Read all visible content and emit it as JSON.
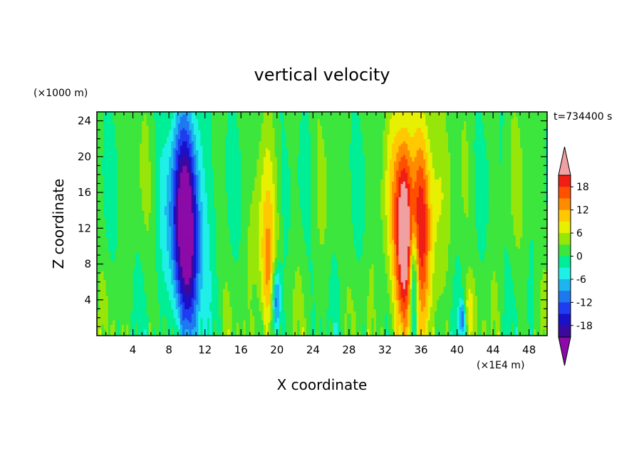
{
  "chart_data": {
    "type": "heatmap",
    "title": "vertical velocity",
    "xlabel": "X coordinate",
    "ylabel": "Z coordinate",
    "x_unit": "(×1E4 m)",
    "y_unit": "(×1000 m)",
    "time_label": "t=734400 s",
    "xlim": [
      0,
      50
    ],
    "ylim": [
      0,
      25
    ],
    "x_ticks": [
      4,
      8,
      12,
      16,
      20,
      24,
      28,
      32,
      36,
      40,
      44,
      48
    ],
    "y_ticks": [
      4,
      8,
      12,
      16,
      20,
      24
    ],
    "colorbar": {
      "levels": [
        -21,
        -18,
        -15,
        -12,
        -9,
        -6,
        -3,
        0,
        3,
        6,
        9,
        12,
        15,
        18,
        21
      ],
      "tick_labels": [
        "18",
        "12",
        "6",
        "0",
        "-6",
        "-12",
        "-18"
      ],
      "colors": [
        "#7A0A9E",
        "#3A0AA0",
        "#1A10C8",
        "#1E3CF0",
        "#1E78F0",
        "#1EB4F0",
        "#1EF0E8",
        "#00EE96",
        "#3CE63C",
        "#96E60A",
        "#E6F000",
        "#FFC800",
        "#FF8C00",
        "#FF5000",
        "#F01E14",
        "#F0A0A0"
      ],
      "under_color": "#8B0AA8",
      "over_color": "#F0A0A0"
    },
    "features": [
      {
        "kind": "updraft",
        "x": 34.2,
        "z_center": 11,
        "peak": 21,
        "width": 0.9,
        "height": 11
      },
      {
        "kind": "updraft",
        "x": 36.0,
        "z_center": 13,
        "peak": 14,
        "width": 1.0,
        "height": 10
      },
      {
        "kind": "updraft",
        "x": 33.3,
        "z_center": 12,
        "peak": 7,
        "width": 1.6,
        "height": 13
      },
      {
        "kind": "updraft",
        "x": 36.8,
        "z_center": 14,
        "peak": 7,
        "width": 1.6,
        "height": 12
      },
      {
        "kind": "downdraft",
        "x": 35.2,
        "z_center": 6,
        "peak": -15,
        "width": 0.45,
        "height": 6
      },
      {
        "kind": "downdraft",
        "x": 9.9,
        "z_center": 12,
        "peak": -21,
        "width": 1.5,
        "height": 11
      },
      {
        "kind": "downdraft",
        "x": 9.9,
        "z_center": 13,
        "peak": -8,
        "width": 2.4,
        "height": 13
      },
      {
        "kind": "downdraft",
        "x": 19.9,
        "z_center": 4,
        "peak": -15,
        "width": 0.5,
        "height": 4
      },
      {
        "kind": "updraft",
        "x": 19.0,
        "z_center": 6,
        "peak": 10,
        "width": 0.9,
        "height": 8
      },
      {
        "kind": "updraft",
        "x": 18.5,
        "z_center": 12,
        "peak": 4,
        "width": 1.2,
        "height": 10
      },
      {
        "kind": "downdraft",
        "x": 40.6,
        "z_center": 2,
        "peak": -12,
        "width": 0.35,
        "height": 2
      },
      {
        "kind": "updraft",
        "x": 41.3,
        "z_center": 3,
        "peak": 6,
        "width": 0.6,
        "height": 3
      }
    ]
  }
}
